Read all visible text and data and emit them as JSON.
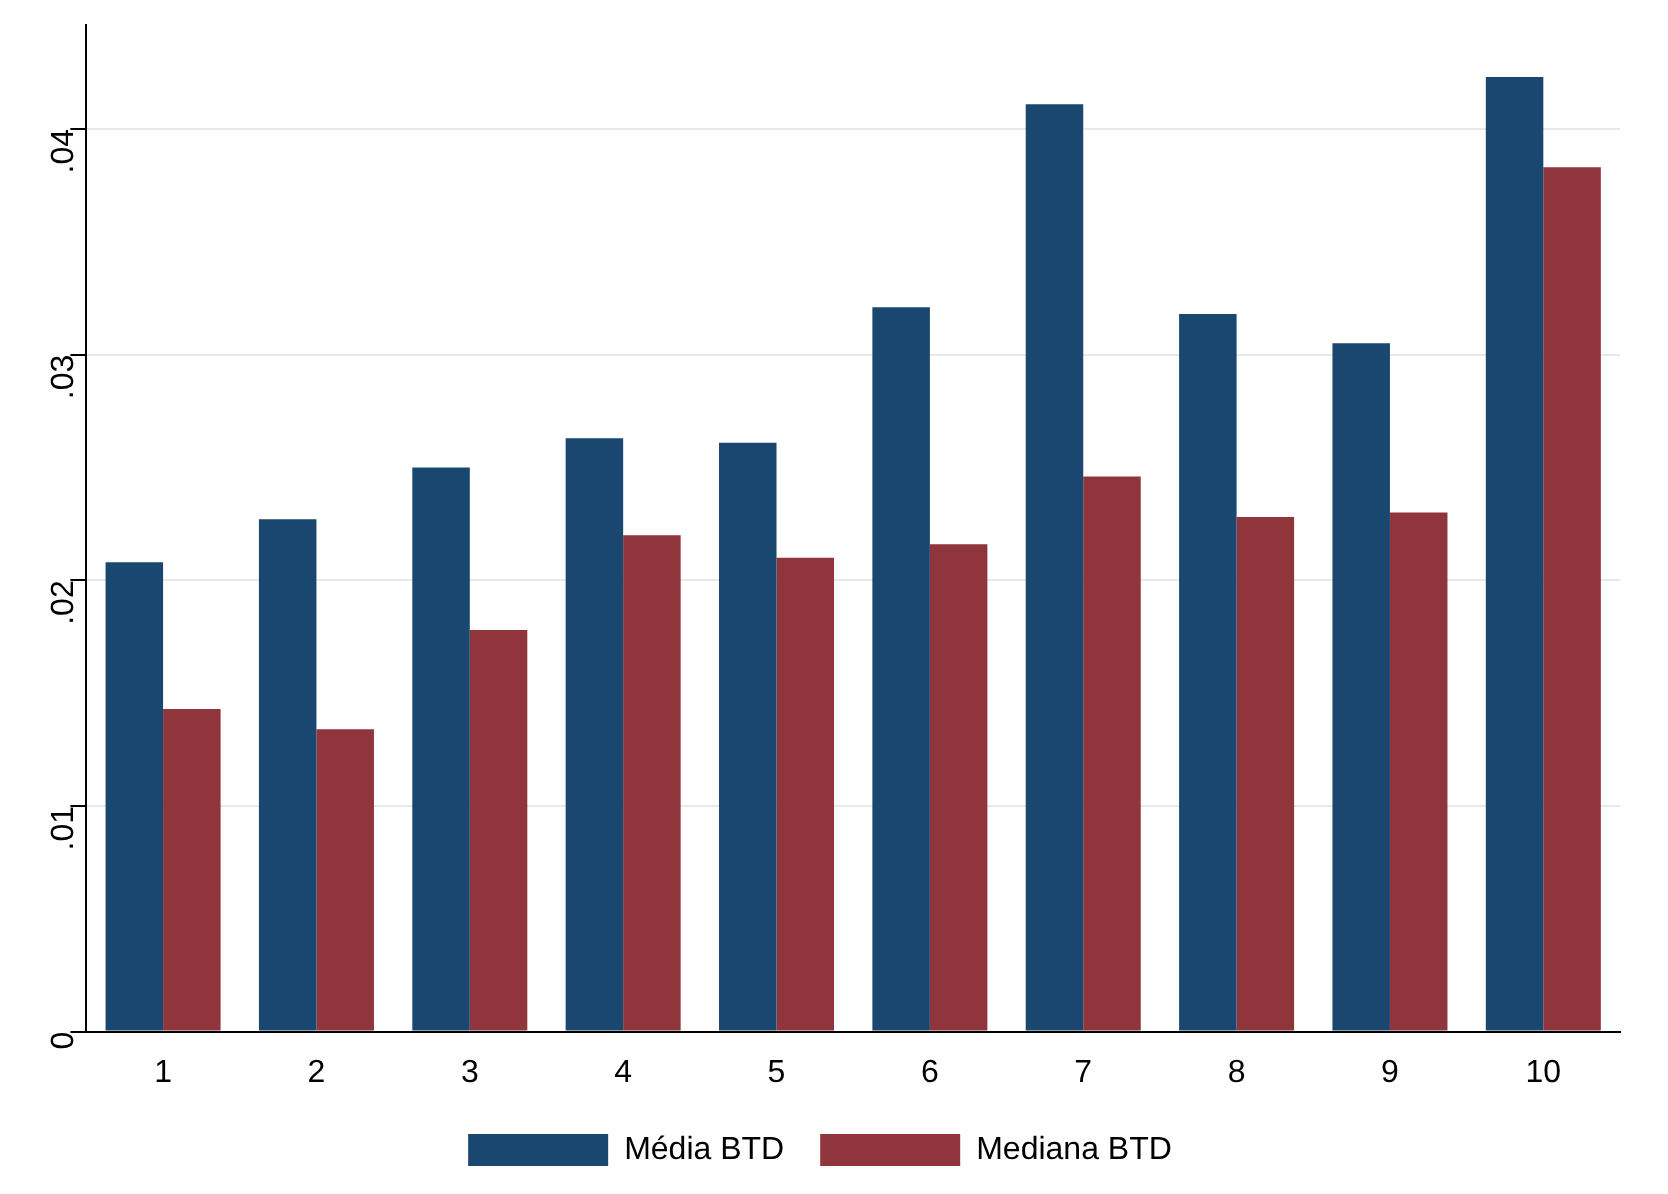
{
  "chart_data": {
    "type": "bar",
    "categories": [
      "1",
      "2",
      "3",
      "4",
      "5",
      "6",
      "7",
      "8",
      "9",
      "10"
    ],
    "series": [
      {
        "name": "Média BTD",
        "color": "#1a476f",
        "values": [
          0.0208,
          0.0227,
          0.025,
          0.0263,
          0.0261,
          0.0321,
          0.0411,
          0.0318,
          0.0305,
          0.0423
        ]
      },
      {
        "name": "Mediana BTD",
        "color": "#90353b",
        "values": [
          0.0143,
          0.0134,
          0.0178,
          0.022,
          0.021,
          0.0216,
          0.0246,
          0.0228,
          0.023,
          0.0383
        ]
      }
    ],
    "ylim": [
      0,
      0.0446
    ],
    "yticks": [
      {
        "value": 0,
        "label": "0"
      },
      {
        "value": 0.01,
        "label": ".01"
      },
      {
        "value": 0.02,
        "label": ".02"
      },
      {
        "value": 0.03,
        "label": ".03"
      },
      {
        "value": 0.04,
        "label": ".04"
      }
    ],
    "grid": "y",
    "legend": "bottom"
  }
}
